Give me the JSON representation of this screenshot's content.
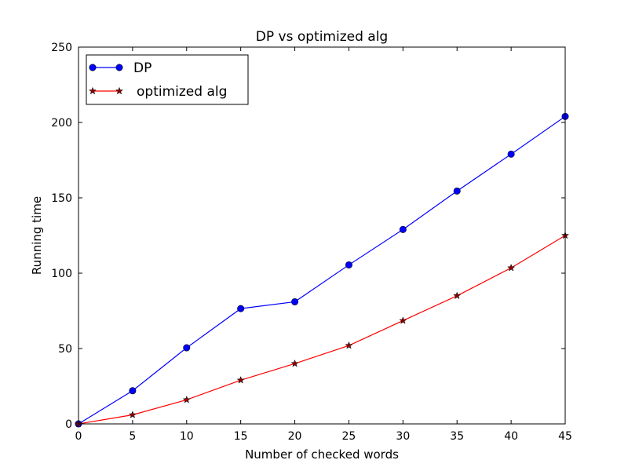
{
  "chart_data": {
    "type": "line",
    "title": "DP vs optimized alg",
    "xlabel": "Number of checked words",
    "ylabel": "Running time",
    "xlim": [
      0,
      45
    ],
    "ylim": [
      0,
      250
    ],
    "xticks": [
      0,
      5,
      10,
      15,
      20,
      25,
      30,
      35,
      40,
      45
    ],
    "yticks": [
      0,
      50,
      100,
      150,
      200,
      250
    ],
    "x": [
      0,
      5,
      10,
      15,
      20,
      25,
      30,
      35,
      40,
      45
    ],
    "grid": false,
    "legend_position": "top-left",
    "series": [
      {
        "name": "DP",
        "values": [
          0,
          22,
          50.5,
          76.5,
          81,
          105.5,
          129,
          154.5,
          179,
          204
        ],
        "color": "#0000ff",
        "marker": "circle",
        "marker_color": "#0000ff"
      },
      {
        "name": "optimized alg",
        "values": [
          0,
          6,
          16,
          29,
          40,
          52,
          68.5,
          85,
          103.5,
          125
        ],
        "color": "#ff0000",
        "marker": "star",
        "marker_color": "#8b0000"
      }
    ]
  }
}
